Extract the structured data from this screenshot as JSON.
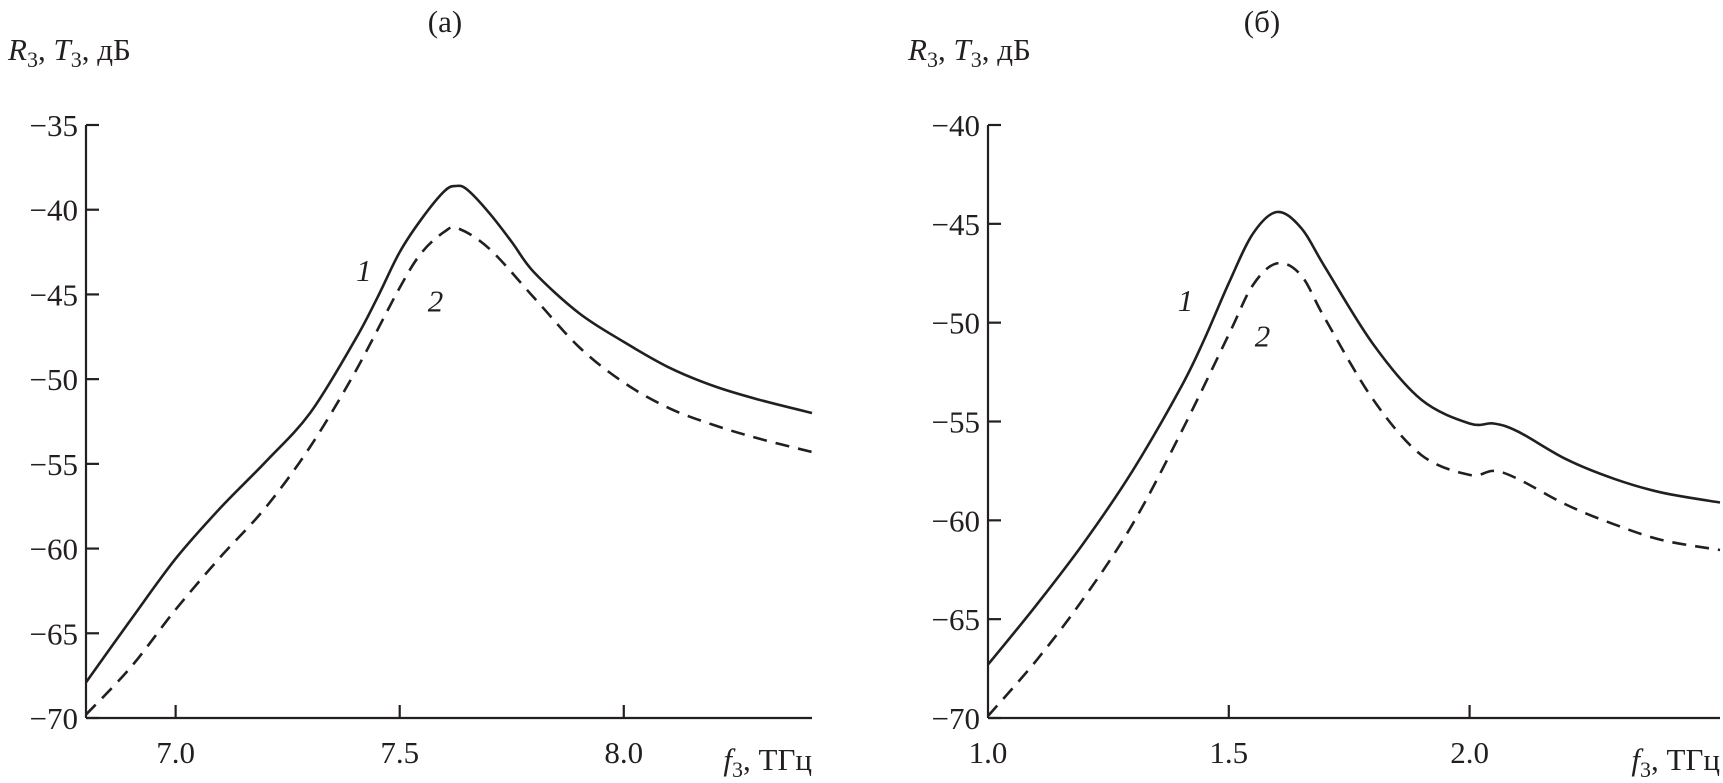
{
  "chart_data": [
    {
      "type": "line",
      "panel_label": "(а)",
      "ylabel_parts": [
        {
          "t": "R",
          "style": "italic"
        },
        {
          "t": "3",
          "style": "sub"
        },
        {
          "t": ", "
        },
        {
          "t": "T",
          "style": "italic"
        },
        {
          "t": "3",
          "style": "sub"
        },
        {
          "t": ", дБ"
        }
      ],
      "xlabel_parts": [
        {
          "t": "f",
          "style": "italic"
        },
        {
          "t": "3",
          "style": "sub"
        },
        {
          "t": ", ТГц"
        }
      ],
      "xlim": [
        6.8,
        8.42
      ],
      "ylim": [
        -70,
        -35
      ],
      "xticks": [
        7.0,
        7.5,
        8.0
      ],
      "xtick_labels": [
        "7.0",
        "7.5",
        "8.0"
      ],
      "yticks": [
        -35,
        -40,
        -45,
        -50,
        -55,
        -60,
        -65,
        -70
      ],
      "ytick_labels": [
        "−35",
        "−40",
        "−45",
        "−50",
        "−55",
        "−60",
        "−65",
        "−70"
      ],
      "grid": false,
      "series": [
        {
          "label": "1",
          "style": "solid",
          "x": [
            6.8,
            6.9,
            7.0,
            7.1,
            7.2,
            7.3,
            7.4,
            7.45,
            7.5,
            7.55,
            7.6,
            7.625,
            7.65,
            7.7,
            7.75,
            7.8,
            7.9,
            8.0,
            8.1,
            8.2,
            8.3,
            8.42
          ],
          "y": [
            -67.9,
            -64.2,
            -60.6,
            -57.6,
            -54.9,
            -52.0,
            -47.7,
            -45.2,
            -42.5,
            -40.5,
            -38.9,
            -38.6,
            -38.8,
            -40.2,
            -41.9,
            -43.7,
            -46.1,
            -47.8,
            -49.3,
            -50.4,
            -51.2,
            -52.0
          ],
          "label_pos": [
            7.42,
            -44.2
          ]
        },
        {
          "label": "2",
          "style": "dashed",
          "x": [
            6.8,
            6.9,
            7.0,
            7.1,
            7.2,
            7.3,
            7.4,
            7.5,
            7.55,
            7.6,
            7.63,
            7.7,
            7.8,
            7.9,
            8.0,
            8.1,
            8.2,
            8.3,
            8.42
          ],
          "y": [
            -69.8,
            -67.0,
            -63.6,
            -60.5,
            -57.6,
            -54.0,
            -49.6,
            -44.6,
            -42.5,
            -41.3,
            -41.1,
            -42.3,
            -45.2,
            -48.1,
            -50.2,
            -51.7,
            -52.7,
            -53.5,
            -54.3
          ],
          "label_pos": [
            7.58,
            -46.0
          ]
        }
      ]
    },
    {
      "type": "line",
      "panel_label": "(б)",
      "ylabel_parts": [
        {
          "t": "R",
          "style": "italic"
        },
        {
          "t": "3",
          "style": "sub"
        },
        {
          "t": ", "
        },
        {
          "t": "T",
          "style": "italic"
        },
        {
          "t": "3",
          "style": "sub"
        },
        {
          "t": ", дБ"
        }
      ],
      "xlabel_parts": [
        {
          "t": "f",
          "style": "italic"
        },
        {
          "t": "3",
          "style": "sub"
        },
        {
          "t": ", ТГц"
        }
      ],
      "xlim": [
        1.0,
        2.52
      ],
      "ylim": [
        -70,
        -40
      ],
      "xticks": [
        1.0,
        1.5,
        2.0
      ],
      "xtick_labels": [
        "1.0",
        "1.5",
        "2.0"
      ],
      "yticks": [
        -40,
        -45,
        -50,
        -55,
        -60,
        -65,
        -70
      ],
      "ytick_labels": [
        "−40",
        "−45",
        "−50",
        "−55",
        "−60",
        "−65",
        "−70"
      ],
      "grid": false,
      "series": [
        {
          "label": "1",
          "style": "solid",
          "x": [
            1.0,
            1.1,
            1.2,
            1.3,
            1.4,
            1.45,
            1.5,
            1.55,
            1.6,
            1.65,
            1.7,
            1.8,
            1.9,
            2.0,
            2.05,
            2.1,
            2.2,
            2.3,
            2.4,
            2.52
          ],
          "y": [
            -67.3,
            -64.3,
            -61.1,
            -57.5,
            -53.3,
            -50.8,
            -48.0,
            -45.5,
            -44.4,
            -45.2,
            -47.2,
            -51.1,
            -53.9,
            -55.1,
            -55.1,
            -55.5,
            -56.9,
            -57.9,
            -58.6,
            -59.1
          ],
          "label_pos": [
            1.41,
            -49.4
          ]
        },
        {
          "label": "2",
          "style": "dashed",
          "x": [
            1.0,
            1.1,
            1.2,
            1.3,
            1.4,
            1.5,
            1.55,
            1.6,
            1.65,
            1.7,
            1.8,
            1.9,
            2.0,
            2.05,
            2.1,
            2.2,
            2.3,
            2.4,
            2.52
          ],
          "y": [
            -69.9,
            -67.1,
            -63.9,
            -60.2,
            -55.6,
            -50.6,
            -48.1,
            -47.0,
            -47.6,
            -49.8,
            -53.9,
            -56.7,
            -57.7,
            -57.5,
            -57.9,
            -59.2,
            -60.2,
            -61.0,
            -61.5
          ],
          "label_pos": [
            1.57,
            -51.2
          ]
        }
      ]
    }
  ]
}
